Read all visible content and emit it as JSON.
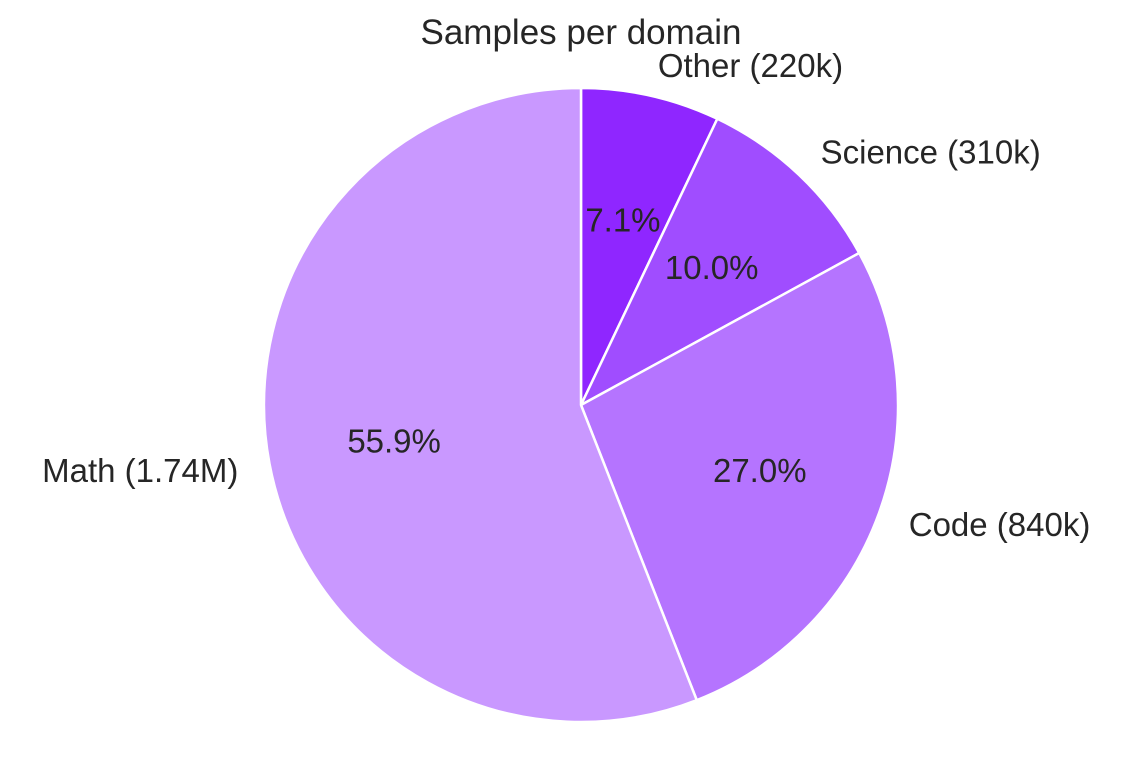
{
  "chart_data": {
    "type": "pie",
    "title": "Samples per domain",
    "start_angle_deg": 90,
    "direction": "clockwise",
    "categories": [
      "Other",
      "Science",
      "Code",
      "Math"
    ],
    "values": [
      220000,
      310000,
      840000,
      1740000
    ],
    "value_labels": [
      "220k",
      "310k",
      "840k",
      "1.74M"
    ],
    "percentages": [
      7.1,
      10.0,
      27.0,
      55.9
    ],
    "slices": [
      {
        "name": "Other",
        "label": "Other (220k)",
        "value": 220000,
        "pct_label": "7.1%",
        "color": "#8f26ff"
      },
      {
        "name": "Science",
        "label": "Science (310k)",
        "value": 310000,
        "pct_label": "10.0%",
        "color": "#a04dff"
      },
      {
        "name": "Code",
        "label": "Code (840k)",
        "value": 840000,
        "pct_label": "27.0%",
        "color": "#b574ff"
      },
      {
        "name": "Math",
        "label": "Math (1.74M)",
        "value": 1740000,
        "pct_label": "55.9%",
        "color": "#c998ff"
      }
    ],
    "edge_color": "#ffffff",
    "legend": "none"
  }
}
